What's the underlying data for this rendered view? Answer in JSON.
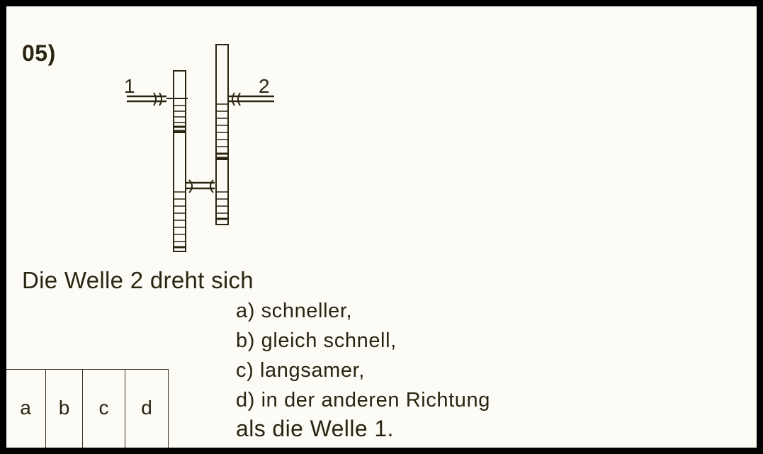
{
  "question": {
    "number": "05)",
    "stem": "Die Welle 2 dreht sich",
    "options": [
      "a) schneller,",
      "b) gleich schnell,",
      "c) langsamer,",
      "d) in der anderen Richtung"
    ],
    "closing": "als die Welle 1."
  },
  "diagram": {
    "shaft_labels": [
      "1",
      "2"
    ]
  },
  "answer_choices": [
    "a",
    "b",
    "c",
    "d"
  ]
}
